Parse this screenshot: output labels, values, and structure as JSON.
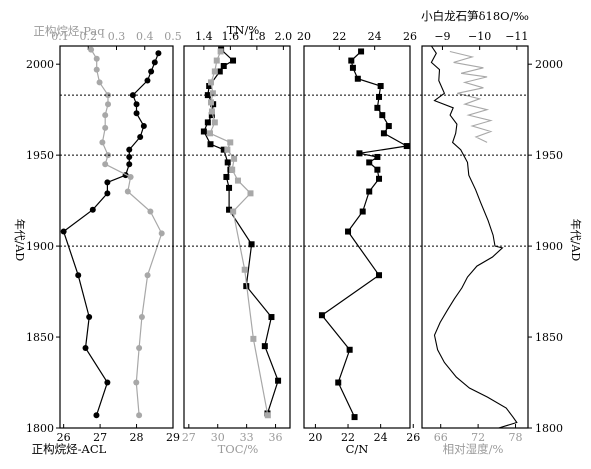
{
  "chart_data": [
    {
      "type": "line",
      "top_axis": {
        "label": "正构烷烃-Paq",
        "ticks": [
          0.1,
          0.2,
          0.3,
          0.4,
          0.5
        ],
        "tick_labels": [
          "0.1",
          "0.2",
          "0.3",
          "0.4",
          "0.5"
        ],
        "range": [
          0.1,
          0.5
        ]
      },
      "bottom_axis": {
        "label": "正构烷烃-ACL",
        "ticks": [
          26,
          27,
          28,
          29
        ],
        "tick_labels": [
          "26",
          "27",
          "28",
          "29"
        ],
        "range": [
          25.9,
          29.0
        ]
      },
      "y_axis": {
        "label": "年代/AD",
        "ticks": [
          1800,
          1850,
          1900,
          1950,
          2000
        ],
        "tick_labels": [
          "1800",
          "1850",
          "1900",
          "1950",
          "2000"
        ],
        "range": [
          1800,
          2010
        ]
      },
      "series": [
        {
          "axis": "bottom",
          "color": "#000000",
          "points": [
            [
              28.6,
              2006
            ],
            [
              28.5,
              2001
            ],
            [
              28.4,
              1996
            ],
            [
              28.3,
              1991
            ],
            [
              27.9,
              1983
            ],
            [
              28.0,
              1978
            ],
            [
              28.0,
              1973
            ],
            [
              28.2,
              1966
            ],
            [
              28.1,
              1960
            ],
            [
              27.8,
              1953
            ],
            [
              27.8,
              1949
            ],
            [
              27.8,
              1945
            ],
            [
              27.7,
              1939
            ],
            [
              27.2,
              1935
            ],
            [
              27.2,
              1929
            ],
            [
              26.8,
              1920
            ],
            [
              26.0,
              1908
            ],
            [
              26.4,
              1884
            ],
            [
              26.7,
              1861
            ],
            [
              26.6,
              1844
            ],
            [
              27.2,
              1825
            ],
            [
              26.9,
              1807
            ]
          ]
        },
        {
          "axis": "top",
          "color": "#a8a8a8",
          "points": [
            [
              0.21,
              2008
            ],
            [
              0.23,
              2003
            ],
            [
              0.23,
              1997
            ],
            [
              0.24,
              1990
            ],
            [
              0.27,
              1983
            ],
            [
              0.27,
              1978
            ],
            [
              0.26,
              1972
            ],
            [
              0.26,
              1965
            ],
            [
              0.25,
              1957
            ],
            [
              0.27,
              1950
            ],
            [
              0.26,
              1945
            ],
            [
              0.35,
              1938
            ],
            [
              0.34,
              1930
            ],
            [
              0.42,
              1919
            ],
            [
              0.46,
              1907
            ],
            [
              0.41,
              1884
            ],
            [
              0.39,
              1861
            ],
            [
              0.38,
              1844
            ],
            [
              0.37,
              1825
            ],
            [
              0.38,
              1807
            ]
          ]
        }
      ]
    },
    {
      "type": "line",
      "top_axis": {
        "label": "TN/%",
        "ticks": [
          1.4,
          1.6,
          1.8,
          2.0
        ],
        "tick_labels": [
          "1.4",
          "1.6",
          "1.8",
          "2.0"
        ],
        "range": [
          1.25,
          2.05
        ]
      },
      "bottom_axis": {
        "label": "TOC/%",
        "ticks": [
          27,
          30,
          33,
          36
        ],
        "tick_labels": [
          "27",
          "30",
          "33",
          "36"
        ],
        "range": [
          26.5,
          37.5
        ]
      },
      "series": [
        {
          "axis": "top",
          "color": "#000000",
          "points": [
            [
              1.53,
              2008
            ],
            [
              1.62,
              2002
            ],
            [
              1.55,
              1999
            ],
            [
              1.52,
              1996
            ],
            [
              1.44,
              1988
            ],
            [
              1.43,
              1983
            ],
            [
              1.47,
              1978
            ],
            [
              1.46,
              1972
            ],
            [
              1.43,
              1968
            ],
            [
              1.4,
              1963
            ],
            [
              1.45,
              1956
            ],
            [
              1.55,
              1953
            ],
            [
              1.58,
              1946
            ],
            [
              1.6,
              1942
            ],
            [
              1.57,
              1938
            ],
            [
              1.59,
              1932
            ],
            [
              1.59,
              1920
            ],
            [
              1.76,
              1901
            ],
            [
              1.72,
              1878
            ],
            [
              1.91,
              1861
            ],
            [
              1.86,
              1845
            ],
            [
              1.96,
              1826
            ],
            [
              1.88,
              1808
            ]
          ]
        },
        {
          "axis": "bottom",
          "color": "#a8a8a8",
          "points": [
            [
              30.3,
              2007
            ],
            [
              29.9,
              2002
            ],
            [
              29.7,
              1996
            ],
            [
              29.3,
              1990
            ],
            [
              29.5,
              1984
            ],
            [
              29.3,
              1979
            ],
            [
              29.4,
              1974
            ],
            [
              29.7,
              1968
            ],
            [
              29.2,
              1962
            ],
            [
              31.3,
              1957
            ],
            [
              31.0,
              1953
            ],
            [
              31.7,
              1948
            ],
            [
              31.5,
              1942
            ],
            [
              32.1,
              1936
            ],
            [
              33.4,
              1929
            ],
            [
              31.6,
              1919
            ],
            [
              32.8,
              1887
            ],
            [
              33.7,
              1849
            ],
            [
              35.2,
              1807
            ]
          ]
        }
      ]
    },
    {
      "type": "line",
      "top_axis": {
        "label": "",
        "ticks": [
          20,
          22,
          24,
          26
        ],
        "tick_labels": [
          "20",
          "22",
          "24",
          "26"
        ],
        "range": [
          20.0,
          26.0
        ]
      },
      "bottom_axis": {
        "label": "C/N",
        "ticks": [
          20,
          22,
          24,
          26
        ],
        "tick_labels": [
          "20",
          "22",
          "24",
          "26"
        ],
        "range": [
          19.3,
          25.8
        ]
      },
      "series": [
        {
          "axis": "bottom",
          "color": "#000000",
          "points": [
            [
              22.8,
              2007
            ],
            [
              22.2,
              2002
            ],
            [
              22.3,
              1998
            ],
            [
              22.6,
              1992
            ],
            [
              24.0,
              1988
            ],
            [
              23.9,
              1982
            ],
            [
              23.8,
              1976
            ],
            [
              24.1,
              1972
            ],
            [
              24.5,
              1966
            ],
            [
              24.2,
              1962
            ],
            [
              25.6,
              1955
            ],
            [
              22.7,
              1951
            ],
            [
              23.8,
              1949
            ],
            [
              23.3,
              1946
            ],
            [
              23.8,
              1942
            ],
            [
              23.9,
              1937
            ],
            [
              23.3,
              1930
            ],
            [
              22.9,
              1919
            ],
            [
              22.0,
              1908
            ],
            [
              23.9,
              1884
            ],
            [
              20.4,
              1862
            ],
            [
              22.1,
              1843
            ],
            [
              21.4,
              1825
            ],
            [
              22.4,
              1806
            ]
          ]
        }
      ]
    },
    {
      "type": "line",
      "top_axis": {
        "label": "小白龙石笋δ18O/‰",
        "ticks": [
          -9,
          -10,
          -11
        ],
        "tick_labels": [
          "−9",
          "−10",
          "−11"
        ],
        "range": [
          -8.45,
          -11.3
        ]
      },
      "bottom_axis": {
        "label": "相对湿度/%",
        "ticks": [
          66,
          72,
          78
        ],
        "tick_labels": [
          "66",
          "72",
          "78"
        ],
        "range": [
          63.0,
          80.0
        ]
      },
      "y_axis_right": {
        "label": "年代/AD",
        "ticks": [
          1800,
          1850,
          1900,
          1950,
          2000
        ],
        "tick_labels": [
          "1800",
          "1850",
          "1900",
          "1950",
          "2000"
        ]
      },
      "series": [
        {
          "axis": "top",
          "color": "#a8a8a8",
          "points": [
            [
              -9.2,
              2007
            ],
            [
              -9.8,
              2004
            ],
            [
              -9.3,
              2001
            ],
            [
              -10.1,
              1998
            ],
            [
              -9.5,
              1995
            ],
            [
              -10.2,
              1993
            ],
            [
              -9.6,
              1990
            ],
            [
              -10.1,
              1987
            ],
            [
              -9.4,
              1984
            ],
            [
              -10.0,
              1981
            ],
            [
              -9.6,
              1978
            ],
            [
              -10.2,
              1975
            ],
            [
              -9.7,
              1972
            ],
            [
              -10.3,
              1969
            ],
            [
              -9.8,
              1966
            ],
            [
              -10.3,
              1963
            ],
            [
              -9.9,
              1960
            ],
            [
              -10.2,
              1957
            ]
          ]
        },
        {
          "axis": "bottom",
          "color": "#000000",
          "points": [
            [
              64.5,
              2010
            ],
            [
              65.3,
              2006
            ],
            [
              64.5,
              2001
            ],
            [
              65.8,
              1997
            ],
            [
              65.7,
              1991
            ],
            [
              66.6,
              1984
            ],
            [
              65.0,
              1980
            ],
            [
              68.0,
              1976
            ],
            [
              67.5,
              1972
            ],
            [
              68.6,
              1967
            ],
            [
              68.4,
              1962
            ],
            [
              67.9,
              1957
            ],
            [
              69.2,
              1953
            ],
            [
              70.3,
              1946
            ],
            [
              70.5,
              1939
            ],
            [
              71.6,
              1931
            ],
            [
              72.4,
              1924
            ],
            [
              73.6,
              1914
            ],
            [
              74.4,
              1906
            ],
            [
              74.7,
              1900
            ],
            [
              75.9,
              1899
            ],
            [
              74.3,
              1894
            ],
            [
              71.8,
              1889
            ],
            [
              70.3,
              1883
            ],
            [
              69.4,
              1877
            ],
            [
              68.2,
              1871
            ],
            [
              67.1,
              1865
            ],
            [
              65.9,
              1858
            ],
            [
              65.0,
              1851
            ],
            [
              65.5,
              1843
            ],
            [
              66.6,
              1836
            ],
            [
              68.5,
              1828
            ],
            [
              70.6,
              1822
            ],
            [
              73.5,
              1817
            ],
            [
              76.5,
              1811
            ],
            [
              77.6,
              1806
            ],
            [
              78.2,
              1803
            ],
            [
              75.3,
              1800
            ]
          ]
        }
      ]
    }
  ]
}
